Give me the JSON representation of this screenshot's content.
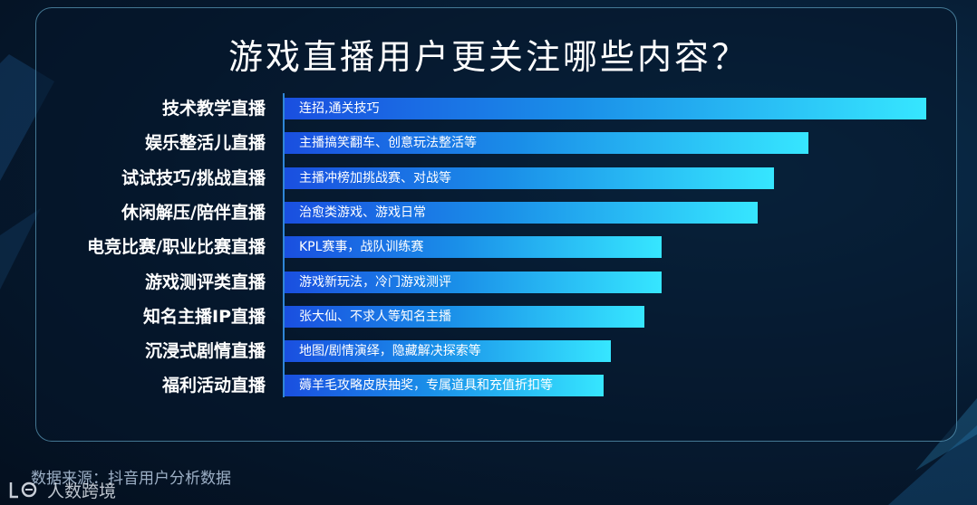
{
  "title": "游戏直播用户更关注哪些内容？",
  "source": "数据来源：抖音用户分析数据",
  "watermark": {
    "text": "人数跨境"
  },
  "colors": {
    "bar_start": "#1a4fe0",
    "bar_end": "#36e6ff",
    "axis": "#2f86d6",
    "panel_border": "#78c8eb"
  },
  "chart_data": {
    "type": "bar",
    "orientation": "horizontal",
    "categories": [
      "技术教学直播",
      "娱乐整活儿直播",
      "试试技巧/挑战直播",
      "休闲解压/陪伴直播",
      "电竞比赛/职业比赛直播",
      "游戏测评类直播",
      "知名主播IP直播",
      "沉浸式剧情直播",
      "福利活动直播"
    ],
    "values": [
      100,
      81.6,
      76.3,
      73.7,
      58.7,
      58.7,
      56.1,
      50.9,
      49.7
    ],
    "bar_labels": [
      "连招,通关技巧",
      "主播搞笑翻车、创意玩法整活等",
      "主播冲榜加挑战赛、对战等",
      "治愈类游戏、游戏日常",
      "KPL赛事，战队训练赛",
      "游戏新玩法，冷门游戏测评",
      "张大仙、不求人等知名主播",
      "地图/剧情演绎，隐藏解决探索等",
      "薅羊毛攻略皮肤抽奖，专属道具和充值折扣等"
    ],
    "xlim": [
      0,
      100
    ],
    "grid": false,
    "legend": "none"
  }
}
